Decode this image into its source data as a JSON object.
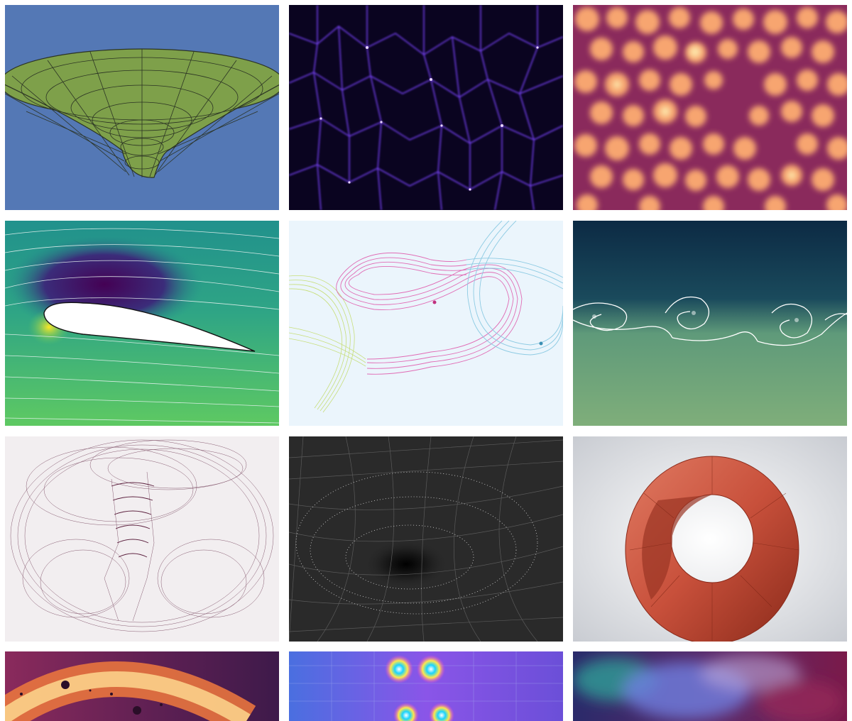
{
  "gallery": {
    "tiles": [
      {
        "row": 0,
        "col": 0,
        "subject": "funnel-surface",
        "colors": {
          "bg": "#5478b5",
          "fill": "#7ea04a",
          "line": "#2b3324"
        }
      },
      {
        "row": 0,
        "col": 1,
        "subject": "cosmic-web-density",
        "colors": {
          "bg": "#0a0420",
          "line": "#7c45ff",
          "glow": "#e8d4ff"
        }
      },
      {
        "row": 0,
        "col": 2,
        "subject": "reaction-diffusion-spots",
        "colors": {
          "bg": "#8a2a5c",
          "spot": "#f7a56f",
          "hot": "#fde3a7"
        }
      },
      {
        "row": 1,
        "col": 0,
        "subject": "airfoil-flow",
        "colors": {
          "high": "#fde725",
          "mid": "#21918c",
          "low": "#440154",
          "bg": "#35b779"
        }
      },
      {
        "row": 1,
        "col": 1,
        "subject": "ribbon-knots",
        "colors": {
          "bg": "#ebf5fc",
          "pink": "#e06cb5",
          "green": "#c7de7a",
          "blue": "#8ecbe3"
        }
      },
      {
        "row": 1,
        "col": 2,
        "subject": "kelvin-helmholtz",
        "colors": {
          "top": "#0c2a44",
          "bottom": "#7fae7a",
          "foam": "#ffffff"
        }
      },
      {
        "row": 2,
        "col": 0,
        "subject": "strange-attractor",
        "colors": {
          "bg": "#f2eef0",
          "ink": "#5a1e3c"
        }
      },
      {
        "row": 2,
        "col": 1,
        "subject": "gravity-well-grid",
        "colors": {
          "bg": "#2a2a2a",
          "grid": "#5a5a5a",
          "dots": "#d8d8d8"
        }
      },
      {
        "row": 2,
        "col": 2,
        "subject": "mobius-ring",
        "colors": {
          "bg": "#e4e7ec",
          "face": "#c8503b",
          "edge": "#8a2a1a"
        }
      },
      {
        "row": 3,
        "col": 0,
        "subject": "ring-with-holes",
        "colors": {
          "bg": "#3e1a4a",
          "glow": "#fbd08a",
          "ring": "#e8743e"
        }
      },
      {
        "row": 3,
        "col": 1,
        "subject": "phase-field-vortices",
        "colors": {
          "bg": "#6b4fd8",
          "hue1": "#19d3ff",
          "hue2": "#ff3fd1"
        }
      },
      {
        "row": 3,
        "col": 2,
        "subject": "nebula-smoke",
        "colors": {
          "bg": "#7a1a4a",
          "mist": "#6f7ee0",
          "teal": "#2fae9c"
        }
      }
    ]
  }
}
